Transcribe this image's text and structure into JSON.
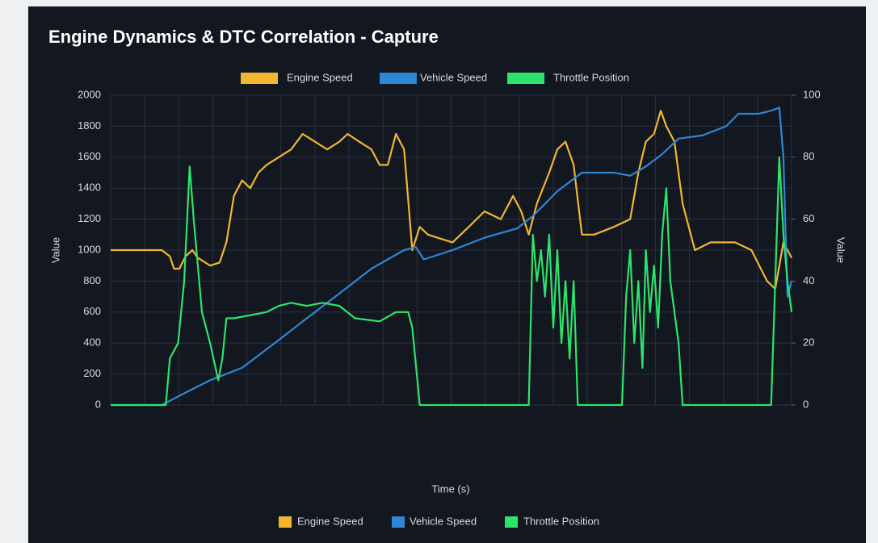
{
  "chart_data": {
    "type": "line",
    "title": "Engine Dynamics & DTC Correlation - Capture",
    "x_label": "Time (s)",
    "y_label": "Value",
    "y2_label": "Value",
    "xlim": [
      0,
      100
    ],
    "ylim": [
      0,
      2000
    ],
    "yticks": [
      0,
      200,
      400,
      600,
      800,
      1000,
      1200,
      1400,
      1600,
      1800,
      2000
    ],
    "y2lim": [
      0,
      100
    ],
    "y2ticks": [
      0,
      20,
      40,
      60,
      80,
      100
    ],
    "grid": true,
    "series": [
      {
        "name": "Engine Speed",
        "color": "#f2b630",
        "axis": "y",
        "x": [
          0,
          7.5,
          8.7,
          9.3,
          10.1,
          11,
          12,
          12.8,
          14.6,
          16,
          17,
          18.1,
          19.3,
          20.5,
          21.7,
          22.9,
          24.7,
          26.5,
          28.2,
          30,
          31.8,
          33.6,
          34.8,
          36.5,
          38.3,
          39.5,
          40.7,
          41.9,
          43.1,
          44.3,
          45.4,
          46.6,
          50.2,
          52.6,
          54.9,
          57.3,
          59.1,
          60.3,
          61.4,
          62.6,
          64.4,
          65.6,
          66.8,
          68,
          69.2,
          71,
          73.9,
          76.3,
          77.5,
          78.6,
          79.8,
          80.8,
          81.6,
          82.8,
          84,
          85.8,
          88.1,
          91.7,
          94.1,
          96.4,
          97.6,
          98.8,
          100
        ],
        "values": [
          1000,
          1000,
          960,
          880,
          880,
          960,
          1000,
          950,
          900,
          920,
          1050,
          1350,
          1450,
          1400,
          1500,
          1550,
          1600,
          1650,
          1750,
          1700,
          1650,
          1700,
          1750,
          1700,
          1650,
          1550,
          1550,
          1750,
          1650,
          1000,
          1150,
          1100,
          1050,
          1150,
          1250,
          1200,
          1350,
          1250,
          1100,
          1300,
          1500,
          1650,
          1700,
          1550,
          1100,
          1100,
          1150,
          1200,
          1500,
          1700,
          1750,
          1900,
          1800,
          1700,
          1300,
          1000,
          1050,
          1050,
          1000,
          800,
          750,
          1050,
          950
        ]
      },
      {
        "name": "Vehicle Speed",
        "color": "#2f86d4",
        "axis": "y2",
        "x": [
          0,
          7.5,
          11,
          14.6,
          19.3,
          24.1,
          28.8,
          33.6,
          38.3,
          43.1,
          44.8,
          46,
          50.2,
          54.9,
          59.7,
          62,
          65.6,
          69.2,
          73.9,
          76.3,
          78.6,
          81,
          83.4,
          86.9,
          90.4,
          92.2,
          95.2,
          97,
          98.2,
          98.8,
          99.4,
          100
        ],
        "values": [
          0,
          0,
          4,
          8,
          12,
          20,
          28,
          36,
          44,
          50,
          51,
          47,
          50,
          54,
          57,
          61,
          69,
          75,
          75,
          74,
          77,
          81,
          86,
          87,
          90,
          94,
          94,
          95,
          96,
          80,
          35,
          40
        ]
      },
      {
        "name": "Throttle Position",
        "color": "#2ee36b",
        "axis": "y2",
        "x": [
          0,
          8.1,
          8.7,
          9.9,
          10.8,
          11.6,
          12.2,
          12.8,
          13.4,
          14.6,
          15.8,
          16.4,
          17,
          18.1,
          22.9,
          24.7,
          26.5,
          28.8,
          31.1,
          33.6,
          35.9,
          39.5,
          41.9,
          43.7,
          44.3,
          45.4,
          61.4,
          62,
          62.6,
          63.2,
          63.8,
          64.4,
          65,
          65.6,
          66.2,
          66.8,
          67.4,
          68,
          68.6,
          75.1,
          75.7,
          76.3,
          76.9,
          77.5,
          78.1,
          78.6,
          79.2,
          79.8,
          80.4,
          81,
          81.6,
          82.2,
          82.8,
          83.4,
          84,
          97,
          97.6,
          98.2,
          98.8,
          99.4,
          100
        ],
        "values": [
          0,
          0,
          15,
          20,
          40,
          77,
          60,
          45,
          30,
          20,
          8,
          15,
          28,
          28,
          30,
          32,
          33,
          32,
          33,
          32,
          28,
          27,
          30,
          30,
          25,
          0,
          0,
          55,
          40,
          50,
          35,
          55,
          25,
          50,
          20,
          40,
          15,
          40,
          0,
          0,
          35,
          50,
          20,
          40,
          12,
          50,
          30,
          45,
          25,
          55,
          70,
          40,
          30,
          20,
          0,
          0,
          40,
          80,
          55,
          40,
          30
        ]
      }
    ]
  }
}
